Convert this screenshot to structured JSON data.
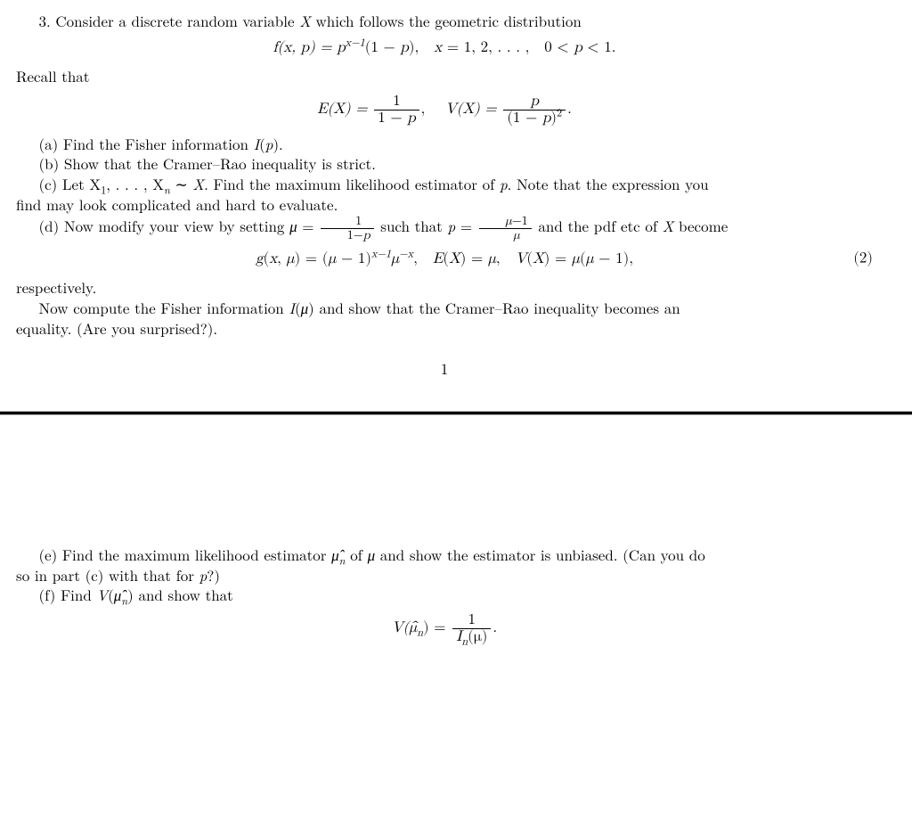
{
  "problem_number": "3.",
  "intro": "Consider a discrete random variable X which follows the geometric distribution",
  "eq_pdf": {
    "lhs": "f(x, p) = p",
    "exp": "x−1",
    "mid": "(1 − p), x = 1, 2, . . . , 0 < p < 1."
  },
  "recall": "Recall that",
  "eq_ev": {
    "e_lhs": "E(X) =",
    "e_num": "1",
    "e_den": "1 − p",
    "sep": ", ",
    "v_lhs": "V(X) =",
    "v_num": "p",
    "v_den": "(1 − p)",
    "v_den_exp": "2",
    "end": "."
  },
  "part_a": "(a) Find the Fisher information I(p).",
  "part_b": "(b) Show that the Cramer–Rao inequality is strict.",
  "part_c_1": "(c) Let X",
  "part_c_sub1": "1",
  "part_c_2": ", . . . , X",
  "part_c_subn": "n",
  "part_c_3": " ∼ X. Find the maximum likelihood estimator of p. Note that the expression you",
  "part_c_cont": "find may look complicated and hard to evaluate.",
  "part_d_1": "(d) Now modify your view by setting μ =",
  "part_d_fr_num": "1",
  "part_d_fr_den": "1−p",
  "part_d_2": " such that p =",
  "part_d_fr2_num": "μ−1",
  "part_d_fr2_den": "μ",
  "part_d_3": " and the pdf etc of X become",
  "eq_g": {
    "a": "g(x, μ) = (μ − 1)",
    "exp1": "x−1",
    "b": "μ",
    "exp2": "−x",
    "c": ", E(X) = μ, V(X) = μ(μ − 1),",
    "num": "(2)"
  },
  "respectively": "respectively.",
  "now_compute_1": "Now compute the Fisher information I(μ) and show that the Cramer–Rao inequality becomes an",
  "now_compute_2": "equality. (Are you surprised?).",
  "page_number": "1",
  "part_e_1": "(e) Find the maximum likelihood estimator μ̂",
  "part_e_subn": "n",
  "part_e_2": " of μ and show the estimator is unbiased. (Can you do",
  "part_e_cont": "so in part (c) with that for p?)",
  "part_f_1": "(f) Find V(μ̂",
  "part_f_subn": "n",
  "part_f_2": ") and show that",
  "eq_final": {
    "lhs": "V(μ̂",
    "lhs_sub": "n",
    "lhs_end": ") =",
    "num": "1",
    "den_a": "I",
    "den_sub": "n",
    "den_b": "(μ)",
    "end": "."
  }
}
